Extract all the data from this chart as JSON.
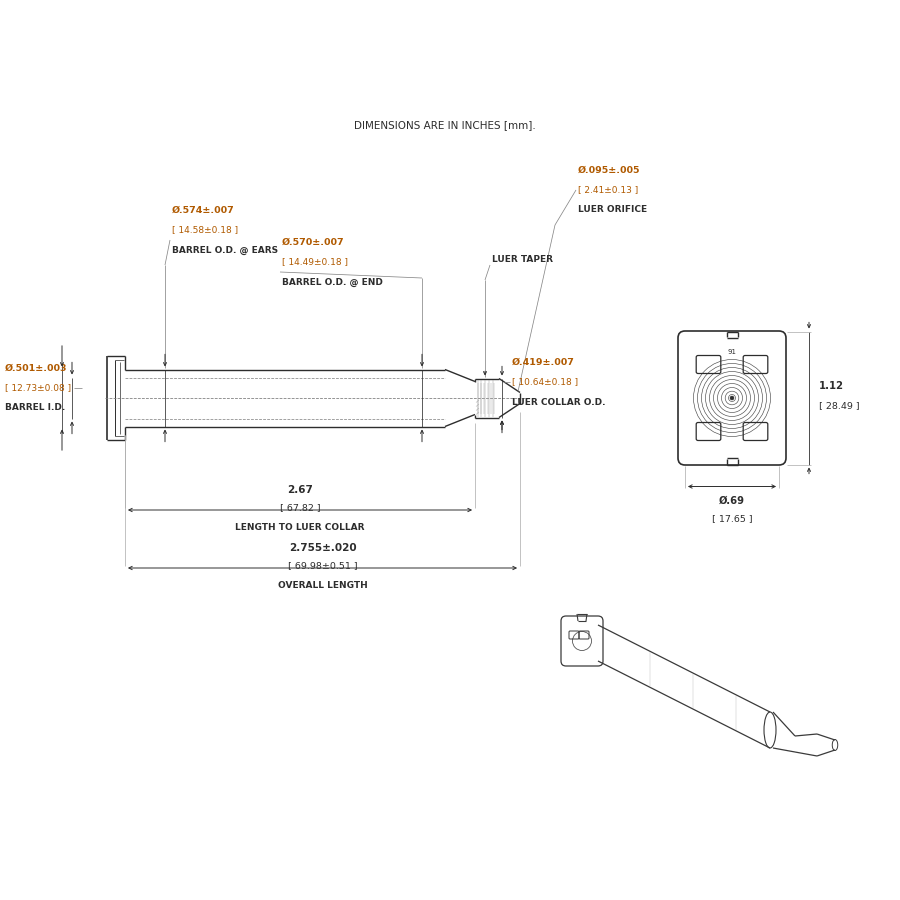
{
  "bg_color": "#ffffff",
  "line_color": "#2d2d2d",
  "dim_color": "#2d2d2d",
  "orange_color": "#b05a00",
  "title_note": "DIMENSIONS ARE IN INCHES [mm].",
  "annotations": {
    "barrel_od_ears": {
      "value": "Ø.574±.007",
      "mm": "[ 14.58±0.18 ]",
      "label": "BARREL O.D. @ EARS"
    },
    "barrel_od_end": {
      "value": "Ø.570±.007",
      "mm": "[ 14.49±0.18 ]",
      "label": "BARREL O.D. @ END"
    },
    "barrel_id": {
      "value": "Ø.501±.003",
      "mm": "[ 12.73±0.08 ]",
      "label": "BARREL I.D."
    },
    "luer_orifice": {
      "value": "Ø.095±.005",
      "mm": "[ 2.41±0.13 ]",
      "label": "LUER ORIFICE"
    },
    "luer_taper": {
      "label": "LUER TAPER"
    },
    "luer_collar_od": {
      "value": "Ø.419±.007",
      "mm": "[ 10.64±0.18 ]",
      "label": "LUER COLLAR O.D."
    },
    "length_to_luer": {
      "value": "2.67",
      "mm": "[ 67.82 ]",
      "label": "LENGTH TO LUER COLLAR"
    },
    "overall_length": {
      "value": "2.755±.020",
      "mm": "[ 69.98±0.51 ]",
      "label": "OVERALL LENGTH"
    },
    "height_dim": {
      "value": "1.12",
      "mm": "[ 28.49 ]"
    },
    "width_dim": {
      "value": "Ø.69",
      "mm": "[ 17.65 ]"
    }
  }
}
